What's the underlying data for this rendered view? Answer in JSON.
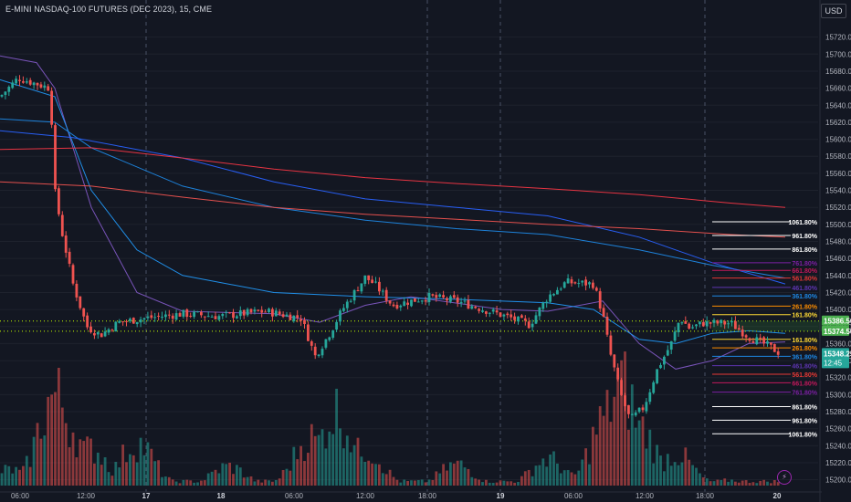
{
  "header": {
    "title": "E-MINI NASDAQ-100 FUTURES (DEC 2023), 15, CME",
    "currency": "USD"
  },
  "colors": {
    "background": "#131722",
    "up": "#26a69a",
    "down": "#ef5350",
    "grid": "#1e222d",
    "ma_fast": "#2962ff",
    "ma_slow": "#f23645",
    "ma_purple": "#7e57c2"
  },
  "chart_data": {
    "type": "candlestick",
    "title": "E-MINI NASDAQ-100 FUTURES (DEC 2023), 15, CME",
    "timeframe": "15",
    "x_ticks": [
      "06:00",
      "12:00",
      "17",
      "18",
      "06:00",
      "12:00",
      "18:00",
      "19",
      "06:00",
      "12:00",
      "18:00",
      "20"
    ],
    "ylim": [
      15190,
      15740
    ],
    "y_ticks": [
      15720.0,
      15700.0,
      15680.0,
      15660.0,
      15640.0,
      15620.0,
      15600.0,
      15580.0,
      15560.0,
      15540.0,
      15520.0,
      15500.0,
      15480.0,
      15460.0,
      15440.0,
      15420.0,
      15400.0,
      15380.0,
      15360.0,
      15340.0,
      15320.0,
      15300.0,
      15280.0,
      15260.0,
      15240.0,
      15220.0,
      15200.0
    ],
    "session_dividers": [
      "17",
      "18:00",
      "19",
      "18:00"
    ],
    "close_anchors": [
      {
        "t": 0,
        "v": 15650
      },
      {
        "t": 20,
        "v": 15672
      },
      {
        "t": 55,
        "v": 15660
      },
      {
        "t": 60,
        "v": 15540
      },
      {
        "t": 68,
        "v": 15490
      },
      {
        "t": 80,
        "v": 15430
      },
      {
        "t": 95,
        "v": 15380
      },
      {
        "t": 110,
        "v": 15370
      },
      {
        "t": 130,
        "v": 15385
      },
      {
        "t": 160,
        "v": 15390
      },
      {
        "t": 200,
        "v": 15395
      },
      {
        "t": 240,
        "v": 15392
      },
      {
        "t": 290,
        "v": 15398
      },
      {
        "t": 330,
        "v": 15390
      },
      {
        "t": 340,
        "v": 15360
      },
      {
        "t": 345,
        "v": 15345
      },
      {
        "t": 360,
        "v": 15370
      },
      {
        "t": 375,
        "v": 15400
      },
      {
        "t": 400,
        "v": 15438
      },
      {
        "t": 410,
        "v": 15430
      },
      {
        "t": 430,
        "v": 15405
      },
      {
        "t": 450,
        "v": 15410
      },
      {
        "t": 470,
        "v": 15415
      },
      {
        "t": 500,
        "v": 15410
      },
      {
        "t": 530,
        "v": 15400
      },
      {
        "t": 560,
        "v": 15390
      },
      {
        "t": 580,
        "v": 15382
      },
      {
        "t": 600,
        "v": 15415
      },
      {
        "t": 620,
        "v": 15432
      },
      {
        "t": 650,
        "v": 15430
      },
      {
        "t": 660,
        "v": 15395
      },
      {
        "t": 668,
        "v": 15350
      },
      {
        "t": 680,
        "v": 15300
      },
      {
        "t": 690,
        "v": 15270
      },
      {
        "t": 705,
        "v": 15285
      },
      {
        "t": 720,
        "v": 15330
      },
      {
        "t": 735,
        "v": 15360
      },
      {
        "t": 745,
        "v": 15390
      },
      {
        "t": 755,
        "v": 15378
      },
      {
        "t": 770,
        "v": 15384
      },
      {
        "t": 800,
        "v": 15384
      },
      {
        "t": 820,
        "v": 15368
      },
      {
        "t": 840,
        "v": 15358
      },
      {
        "t": 855,
        "v": 15348.25
      }
    ],
    "moving_averages": [
      {
        "color": "#7e57c2",
        "points": [
          [
            0,
            15698
          ],
          [
            40,
            15690
          ],
          [
            60,
            15660
          ],
          [
            100,
            15520
          ],
          [
            150,
            15420
          ],
          [
            200,
            15398
          ],
          [
            300,
            15395
          ],
          [
            350,
            15385
          ],
          [
            400,
            15405
          ],
          [
            450,
            15415
          ],
          [
            550,
            15400
          ],
          [
            600,
            15398
          ],
          [
            660,
            15410
          ],
          [
            700,
            15360
          ],
          [
            740,
            15330
          ],
          [
            780,
            15340
          ],
          [
            820,
            15360
          ],
          [
            860,
            15362
          ]
        ]
      },
      {
        "color": "#2196f3",
        "points": [
          [
            0,
            15670
          ],
          [
            60,
            15650
          ],
          [
            100,
            15540
          ],
          [
            150,
            15470
          ],
          [
            200,
            15440
          ],
          [
            300,
            15420
          ],
          [
            400,
            15415
          ],
          [
            500,
            15412
          ],
          [
            600,
            15408
          ],
          [
            650,
            15400
          ],
          [
            700,
            15365
          ],
          [
            740,
            15360
          ],
          [
            780,
            15372
          ],
          [
            820,
            15375
          ],
          [
            860,
            15372
          ]
        ]
      },
      {
        "color": "#1e88e5",
        "points": [
          [
            0,
            15624
          ],
          [
            60,
            15620
          ],
          [
            100,
            15590
          ],
          [
            200,
            15545
          ],
          [
            300,
            15520
          ],
          [
            400,
            15505
          ],
          [
            500,
            15495
          ],
          [
            600,
            15488
          ],
          [
            700,
            15470
          ],
          [
            780,
            15452
          ],
          [
            860,
            15437
          ]
        ]
      },
      {
        "color": "#2962ff",
        "points": [
          [
            0,
            15610
          ],
          [
            80,
            15602
          ],
          [
            200,
            15578
          ],
          [
            300,
            15550
          ],
          [
            400,
            15530
          ],
          [
            500,
            15520
          ],
          [
            600,
            15510
          ],
          [
            700,
            15485
          ],
          [
            780,
            15455
          ],
          [
            860,
            15430
          ]
        ]
      },
      {
        "color": "#f23645",
        "points": [
          [
            0,
            15588
          ],
          [
            100,
            15590
          ],
          [
            200,
            15578
          ],
          [
            300,
            15565
          ],
          [
            400,
            15555
          ],
          [
            500,
            15548
          ],
          [
            600,
            15542
          ],
          [
            700,
            15535
          ],
          [
            800,
            15525
          ],
          [
            860,
            15520
          ]
        ]
      },
      {
        "color": "#ef5350",
        "points": [
          [
            0,
            15550
          ],
          [
            100,
            15545
          ],
          [
            200,
            15532
          ],
          [
            300,
            15520
          ],
          [
            400,
            15512
          ],
          [
            500,
            15506
          ],
          [
            600,
            15500
          ],
          [
            700,
            15495
          ],
          [
            800,
            15488
          ],
          [
            860,
            15485
          ]
        ]
      }
    ],
    "price_labels": [
      {
        "value": 15386.5,
        "text": "15386.50",
        "color": "#4caf50"
      },
      {
        "value": 15374.5,
        "text": "15374.50",
        "color": "#4caf50"
      },
      {
        "value": 15348.25,
        "text": "15348.25",
        "sub": "12:45",
        "color": "#26a69a"
      }
    ],
    "fib_levels": [
      {
        "label": "1061.80%",
        "value": 15503,
        "color": "#ffffff"
      },
      {
        "label": "961.80%",
        "value": 15487,
        "color": "#ffffff"
      },
      {
        "label": "861.80%",
        "value": 15471,
        "color": "#ffffff"
      },
      {
        "label": "761.80%",
        "value": 15455,
        "color": "#7b1fa2"
      },
      {
        "label": "661.80%",
        "value": 15446,
        "color": "#c2185b"
      },
      {
        "label": "561.80%",
        "value": 15437,
        "color": "#e53935"
      },
      {
        "label": "461.80%",
        "value": 15426,
        "color": "#5e35b1"
      },
      {
        "label": "361.80%",
        "value": 15416,
        "color": "#1e88e5"
      },
      {
        "label": "261.80%",
        "value": 15404,
        "color": "#fb8c00"
      },
      {
        "label": "161.80%",
        "value": 15394,
        "color": "#fdd835"
      },
      {
        "label": "161.80%",
        "value": 15365,
        "color": "#fdd835"
      },
      {
        "label": "261.80%",
        "value": 15355,
        "color": "#fb8c00"
      },
      {
        "label": "361.80%",
        "value": 15345,
        "color": "#1e88e5"
      },
      {
        "label": "461.80%",
        "value": 15334,
        "color": "#5e35b1"
      },
      {
        "label": "561.80%",
        "value": 15324,
        "color": "#e53935"
      },
      {
        "label": "661.80%",
        "value": 15314,
        "color": "#c2185b"
      },
      {
        "label": "761.80%",
        "value": 15303,
        "color": "#7b1fa2"
      },
      {
        "label": "861.80%",
        "value": 15286,
        "color": "#ffffff"
      },
      {
        "label": "961.80%",
        "value": 15270,
        "color": "#ffffff"
      },
      {
        "label": "1061.80%",
        "value": 15254,
        "color": "#ffffff"
      }
    ],
    "dotted_levels": [
      15386.5,
      15374.5
    ],
    "volume_peaks": [
      {
        "t": 10,
        "h": 0.15
      },
      {
        "t": 60,
        "h": 0.85
      },
      {
        "t": 72,
        "h": 0.6
      },
      {
        "t": 100,
        "h": 0.35
      },
      {
        "t": 150,
        "h": 0.4
      },
      {
        "t": 250,
        "h": 0.18
      },
      {
        "t": 340,
        "h": 0.45
      },
      {
        "t": 368,
        "h": 0.7
      },
      {
        "t": 400,
        "h": 0.35
      },
      {
        "t": 500,
        "h": 0.2
      },
      {
        "t": 600,
        "h": 0.25
      },
      {
        "t": 665,
        "h": 0.65
      },
      {
        "t": 680,
        "h": 0.95
      },
      {
        "t": 700,
        "h": 0.55
      },
      {
        "t": 740,
        "h": 0.3
      },
      {
        "t": 800,
        "h": 0.05
      }
    ]
  }
}
